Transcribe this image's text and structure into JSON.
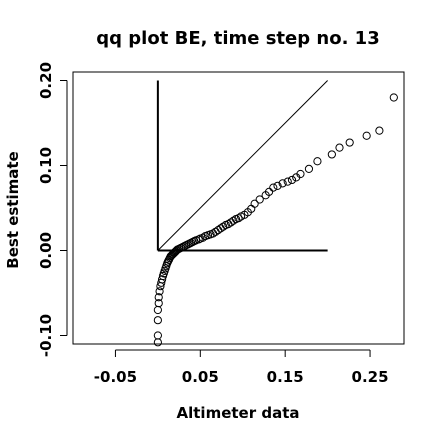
{
  "chart_data": {
    "type": "scatter",
    "title": "qq plot BE, time step no. 13",
    "xlabel": "Altimeter data",
    "ylabel": "Best estimate",
    "xlim": [
      -0.1,
      0.29
    ],
    "ylim": [
      -0.11,
      0.21
    ],
    "x_ticks": [
      -0.05,
      0.05,
      0.15,
      0.25
    ],
    "x_tick_labels": [
      "-0.05",
      "0.05",
      "0.15",
      "0.25"
    ],
    "y_ticks": [
      -0.1,
      0.0,
      0.1,
      0.2
    ],
    "y_tick_labels": [
      "-0.10",
      "0.00",
      "0.10",
      "0.20"
    ],
    "grid": false,
    "reference_lines": [
      {
        "x": [
          0.0,
          0.0
        ],
        "y": [
          0.0,
          0.2
        ]
      },
      {
        "x": [
          0.0,
          0.2
        ],
        "y": [
          0.0,
          0.0
        ]
      },
      {
        "x": [
          0.0,
          0.2
        ],
        "y": [
          0.0,
          0.2
        ]
      }
    ],
    "points": [
      [
        0.0,
        -0.108
      ],
      [
        0.0,
        -0.1
      ],
      [
        0.0,
        -0.082
      ],
      [
        0.0,
        -0.07
      ],
      [
        0.001,
        -0.062
      ],
      [
        0.001,
        -0.055
      ],
      [
        0.002,
        -0.048
      ],
      [
        0.003,
        -0.042
      ],
      [
        0.004,
        -0.038
      ],
      [
        0.005,
        -0.034
      ],
      [
        0.006,
        -0.03
      ],
      [
        0.007,
        -0.027
      ],
      [
        0.008,
        -0.024
      ],
      [
        0.009,
        -0.021
      ],
      [
        0.01,
        -0.018
      ],
      [
        0.011,
        -0.015
      ],
      [
        0.012,
        -0.013
      ],
      [
        0.013,
        -0.011
      ],
      [
        0.014,
        -0.009
      ],
      [
        0.015,
        -0.007
      ],
      [
        0.016,
        -0.006
      ],
      [
        0.017,
        -0.005
      ],
      [
        0.018,
        -0.004
      ],
      [
        0.019,
        -0.003
      ],
      [
        0.02,
        -0.002
      ],
      [
        0.021,
        -0.001
      ],
      [
        0.022,
        0.0
      ],
      [
        0.023,
        0.001
      ],
      [
        0.025,
        0.002
      ],
      [
        0.027,
        0.003
      ],
      [
        0.029,
        0.004
      ],
      [
        0.031,
        0.005
      ],
      [
        0.033,
        0.006
      ],
      [
        0.035,
        0.007
      ],
      [
        0.037,
        0.008
      ],
      [
        0.039,
        0.009
      ],
      [
        0.041,
        0.01
      ],
      [
        0.043,
        0.011
      ],
      [
        0.045,
        0.012
      ],
      [
        0.048,
        0.013
      ],
      [
        0.05,
        0.014
      ],
      [
        0.053,
        0.015
      ],
      [
        0.056,
        0.017
      ],
      [
        0.059,
        0.018
      ],
      [
        0.062,
        0.019
      ],
      [
        0.065,
        0.02
      ],
      [
        0.068,
        0.022
      ],
      [
        0.071,
        0.024
      ],
      [
        0.074,
        0.026
      ],
      [
        0.077,
        0.028
      ],
      [
        0.08,
        0.03
      ],
      [
        0.083,
        0.031
      ],
      [
        0.086,
        0.033
      ],
      [
        0.089,
        0.035
      ],
      [
        0.092,
        0.037
      ],
      [
        0.095,
        0.038
      ],
      [
        0.098,
        0.04
      ],
      [
        0.102,
        0.042
      ],
      [
        0.106,
        0.045
      ],
      [
        0.11,
        0.049
      ],
      [
        0.114,
        0.055
      ],
      [
        0.12,
        0.06
      ],
      [
        0.127,
        0.065
      ],
      [
        0.131,
        0.069
      ],
      [
        0.136,
        0.074
      ],
      [
        0.141,
        0.076
      ],
      [
        0.147,
        0.079
      ],
      [
        0.153,
        0.081
      ],
      [
        0.158,
        0.083
      ],
      [
        0.163,
        0.086
      ],
      [
        0.168,
        0.09
      ],
      [
        0.178,
        0.096
      ],
      [
        0.188,
        0.105
      ],
      [
        0.205,
        0.113
      ],
      [
        0.214,
        0.121
      ],
      [
        0.226,
        0.127
      ],
      [
        0.246,
        0.135
      ],
      [
        0.261,
        0.141
      ],
      [
        0.278,
        0.18
      ]
    ]
  }
}
